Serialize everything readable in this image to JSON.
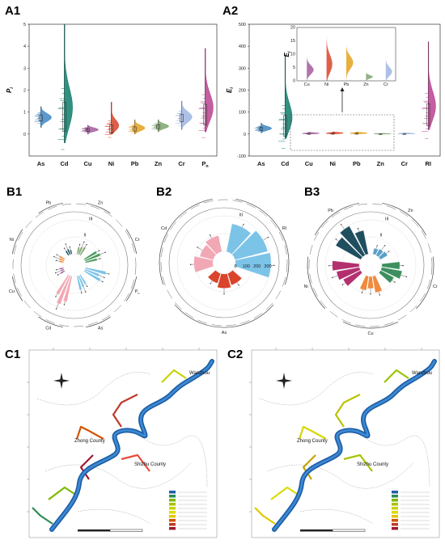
{
  "panels": {
    "A1": "A1",
    "A2": "A2",
    "B1": "B1",
    "B2": "B2",
    "B3": "B3",
    "C1": "C1",
    "C2": "C2"
  },
  "chart_data": [
    {
      "id": "A1",
      "type": "violin",
      "ylabel": "P_i",
      "categories": [
        "As",
        "Cd",
        "Cu",
        "Ni",
        "Pb",
        "Zn",
        "Cr",
        "P_n"
      ],
      "ylim": [
        -1,
        5
      ],
      "yticks": [
        0,
        1,
        2,
        3,
        4,
        5
      ],
      "series": [
        {
          "category": "As",
          "color": "#3f88c5",
          "median": 0.75,
          "min": 0.3,
          "max": 1.25
        },
        {
          "category": "Cd",
          "color": "#0e7c6b",
          "median": 0.8,
          "min": -0.4,
          "max": 5.0
        },
        {
          "category": "Cu",
          "color": "#a35c9f",
          "median": 0.2,
          "min": 0.0,
          "max": 0.4
        },
        {
          "category": "Ni",
          "color": "#d9442a",
          "median": 0.25,
          "min": 0.0,
          "max": 1.45
        },
        {
          "category": "Pb",
          "color": "#e4a21d",
          "median": 0.25,
          "min": 0.0,
          "max": 0.65
        },
        {
          "category": "Zn",
          "color": "#7fa46f",
          "median": 0.35,
          "min": 0.1,
          "max": 0.65
        },
        {
          "category": "Cr",
          "color": "#9fb6e3",
          "median": 0.75,
          "min": 0.2,
          "max": 1.5
        },
        {
          "category": "P_n",
          "color": "#b9428f",
          "median": 0.9,
          "min": 0.1,
          "max": 3.9
        }
      ]
    },
    {
      "id": "A2",
      "type": "violin",
      "ylabel": "E_i",
      "categories": [
        "As",
        "Cd",
        "Cu",
        "Ni",
        "Pb",
        "Zn",
        "Cr",
        "RI"
      ],
      "ylim": [
        -100,
        500
      ],
      "yticks": [
        -100,
        0,
        100,
        200,
        300,
        400,
        500
      ],
      "series": [
        {
          "category": "As",
          "color": "#3f88c5",
          "median": 25,
          "min": 5,
          "max": 50
        },
        {
          "category": "Cd",
          "color": "#0e7c6b",
          "median": 40,
          "min": -20,
          "max": 360
        },
        {
          "category": "Cu",
          "color": "#a35c9f",
          "median": 3,
          "min": 0,
          "max": 8
        },
        {
          "category": "Ni",
          "color": "#d9442a",
          "median": 4,
          "min": 0,
          "max": 10
        },
        {
          "category": "Pb",
          "color": "#e4a21d",
          "median": 4,
          "min": 0,
          "max": 9
        },
        {
          "category": "Zn",
          "color": "#7fa46f",
          "median": 1,
          "min": 0,
          "max": 3
        },
        {
          "category": "Cr",
          "color": "#9fb6e3",
          "median": 2,
          "min": 0,
          "max": 5
        },
        {
          "category": "RI",
          "color": "#b9428f",
          "median": 90,
          "min": 20,
          "max": 420
        }
      ],
      "inset": {
        "ylabel": "E_i",
        "ylim": [
          0,
          20
        ],
        "yticks": [
          0,
          5,
          10,
          15,
          20
        ],
        "categories": [
          "Cu",
          "Ni",
          "Pb",
          "Zn",
          "Cr"
        ],
        "medians": [
          4,
          5,
          7,
          1.5,
          3
        ],
        "maxima": [
          9,
          19,
          13,
          3,
          9
        ]
      }
    },
    {
      "id": "B1",
      "type": "polar_bar",
      "groups": [
        "Zn",
        "Cr",
        "P_n",
        "As",
        "Cd",
        "Cu",
        "Ni",
        "Pb"
      ],
      "ring_labels": [
        "I",
        "II",
        "III"
      ],
      "values": [
        0.4,
        0.7,
        0.9,
        0.6,
        1.3,
        0.2,
        0.25,
        0.25
      ],
      "colors": [
        "#7fa46f",
        "#4a9a5b",
        "#7cc3e8",
        "#7cc3e8",
        "#f2a7b4",
        "#a35c9f",
        "#f08a3c",
        "#1f4e5f"
      ]
    },
    {
      "id": "B2",
      "type": "polar_bar",
      "groups": [
        "RI",
        "As",
        "Cd"
      ],
      "ring_labels": [
        "I",
        "II",
        "III"
      ],
      "radial_ticks": [
        0,
        100,
        200,
        300
      ],
      "values": [
        330,
        120,
        160
      ],
      "colors": [
        "#7cc3e8",
        "#d9442a",
        "#f2a7b4"
      ]
    },
    {
      "id": "B3",
      "type": "polar_bar",
      "groups": [
        "Zn",
        "Cr",
        "Cu",
        "Ni",
        "Pb"
      ],
      "ring_labels": [
        "I",
        "II",
        "III"
      ],
      "values": [
        0.4,
        1.0,
        0.8,
        1.3,
        1.6
      ],
      "colors": [
        "#5b9fc8",
        "#3d8f5f",
        "#f08a3c",
        "#b3306f",
        "#1f4e5f"
      ]
    }
  ],
  "maps": {
    "C1": {
      "places": [
        "Zhong County",
        "Shizhu County",
        "Wanzhou"
      ]
    },
    "C2": {
      "places": [
        "Zhong County",
        "Shizhu County",
        "Wanzhou"
      ]
    }
  }
}
